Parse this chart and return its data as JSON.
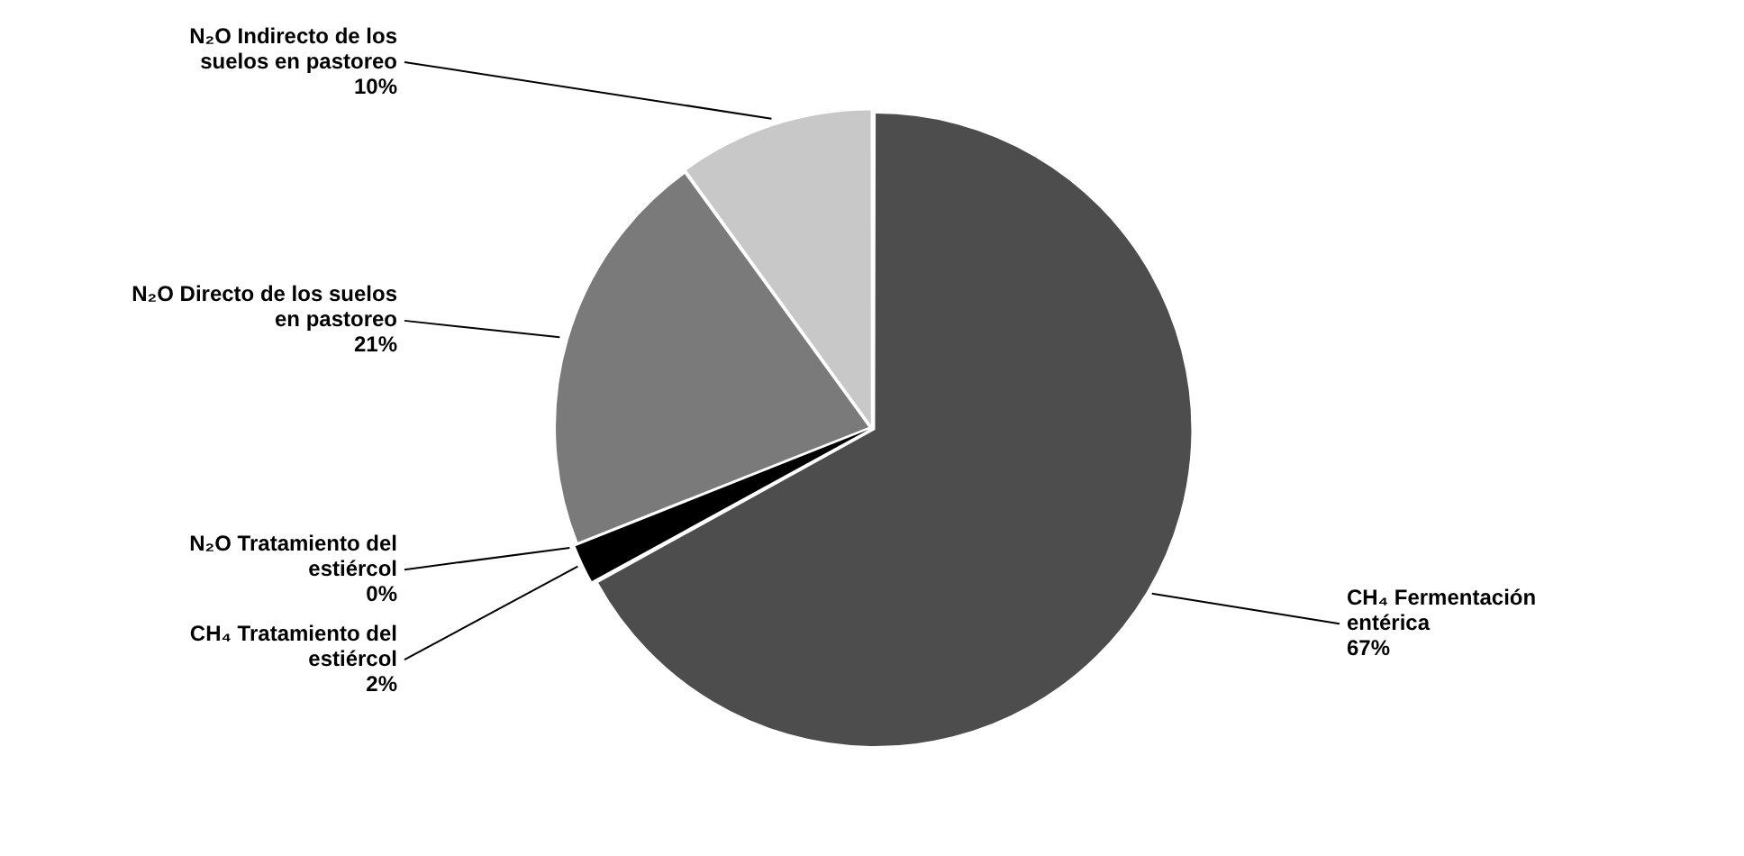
{
  "chart_data": {
    "type": "pie",
    "categories": [
      "CH₄ Fermentación entérica",
      "CH₄ Tratamiento del estiércol",
      "N₂O Tratamiento del estiércol",
      "N₂O Directo de los suelos en pastoreo",
      "N₂O Indirecto de los suelos en pastoreo"
    ],
    "values": [
      67,
      2,
      0,
      21,
      10
    ],
    "colors": [
      "#4d4d4d",
      "#000000",
      "#262626",
      "#7a7a7a",
      "#c8c8c8"
    ],
    "value_labels": [
      "67%",
      "2%",
      "0%",
      "21%",
      "10%"
    ],
    "legend": false
  }
}
